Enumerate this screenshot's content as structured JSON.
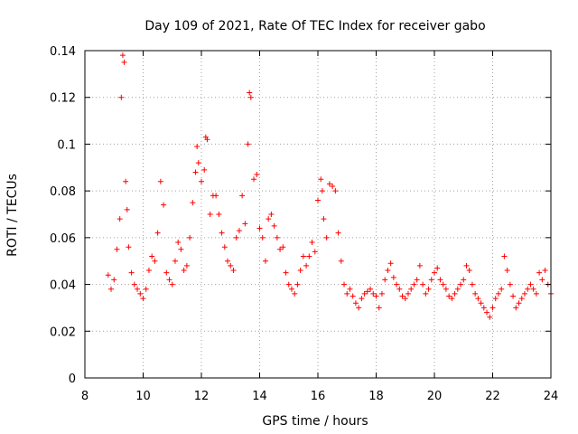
{
  "chart_data": {
    "type": "scatter",
    "title": "Day 109 of 2021, Rate Of TEC Index for receiver gabo",
    "xlabel": "GPS time / hours",
    "ylabel": "ROTI / TECUs",
    "xlim": [
      8,
      24
    ],
    "ylim": [
      0,
      0.14
    ],
    "xticks": [
      "8",
      "10",
      "12",
      "14",
      "16",
      "18",
      "20",
      "22",
      "24"
    ],
    "yticks": [
      "0",
      "0.02",
      "0.04",
      "0.06",
      "0.08",
      "0.1",
      "0.12",
      "0.14"
    ],
    "xtick_values": [
      8,
      10,
      12,
      14,
      16,
      18,
      20,
      22,
      24
    ],
    "ytick_values": [
      0,
      0.02,
      0.04,
      0.06,
      0.08,
      0.1,
      0.12,
      0.14
    ],
    "grid": true,
    "marker": "plus",
    "color": "#ff0000",
    "series": [
      {
        "name": "ROTI",
        "x": [
          8.8,
          8.9,
          9.0,
          9.1,
          9.2,
          9.25,
          9.3,
          9.35,
          9.4,
          9.45,
          9.5,
          9.6,
          9.7,
          9.8,
          9.9,
          10.0,
          10.1,
          10.2,
          10.3,
          10.4,
          10.5,
          10.6,
          10.7,
          10.8,
          10.9,
          11.0,
          11.1,
          11.2,
          11.3,
          11.4,
          11.5,
          11.6,
          11.7,
          11.8,
          11.85,
          11.9,
          12.0,
          12.1,
          12.15,
          12.2,
          12.3,
          12.4,
          12.5,
          12.6,
          12.7,
          12.8,
          12.9,
          13.0,
          13.1,
          13.2,
          13.3,
          13.4,
          13.5,
          13.6,
          13.65,
          13.7,
          13.8,
          13.9,
          14.0,
          14.1,
          14.2,
          14.3,
          14.4,
          14.5,
          14.6,
          14.7,
          14.8,
          14.9,
          15.0,
          15.1,
          15.2,
          15.3,
          15.4,
          15.5,
          15.6,
          15.7,
          15.8,
          15.9,
          16.0,
          16.1,
          16.15,
          16.2,
          16.3,
          16.4,
          16.5,
          16.6,
          16.7,
          16.8,
          16.9,
          17.0,
          17.1,
          17.2,
          17.3,
          17.4,
          17.5,
          17.6,
          17.7,
          17.8,
          17.9,
          18.0,
          18.1,
          18.2,
          18.3,
          18.4,
          18.5,
          18.6,
          18.7,
          18.8,
          18.9,
          19.0,
          19.1,
          19.2,
          19.3,
          19.4,
          19.5,
          19.6,
          19.7,
          19.8,
          19.9,
          20.0,
          20.1,
          20.2,
          20.3,
          20.4,
          20.5,
          20.6,
          20.7,
          20.8,
          20.9,
          21.0,
          21.1,
          21.2,
          21.3,
          21.4,
          21.5,
          21.6,
          21.7,
          21.8,
          21.9,
          22.0,
          22.1,
          22.2,
          22.3,
          22.4,
          22.5,
          22.6,
          22.7,
          22.8,
          22.9,
          23.0,
          23.1,
          23.2,
          23.3,
          23.4,
          23.5,
          23.6,
          23.7,
          23.8,
          23.9,
          24.0
        ],
        "y": [
          0.044,
          0.038,
          0.042,
          0.055,
          0.068,
          0.12,
          0.138,
          0.135,
          0.084,
          0.072,
          0.056,
          0.045,
          0.04,
          0.038,
          0.036,
          0.034,
          0.038,
          0.046,
          0.052,
          0.05,
          0.062,
          0.084,
          0.074,
          0.045,
          0.042,
          0.04,
          0.05,
          0.058,
          0.055,
          0.046,
          0.048,
          0.06,
          0.075,
          0.088,
          0.099,
          0.092,
          0.084,
          0.089,
          0.103,
          0.102,
          0.07,
          0.078,
          0.078,
          0.07,
          0.062,
          0.056,
          0.05,
          0.048,
          0.046,
          0.06,
          0.063,
          0.078,
          0.066,
          0.1,
          0.122,
          0.12,
          0.085,
          0.087,
          0.064,
          0.06,
          0.05,
          0.068,
          0.07,
          0.065,
          0.06,
          0.055,
          0.056,
          0.045,
          0.04,
          0.038,
          0.036,
          0.04,
          0.046,
          0.052,
          0.048,
          0.052,
          0.058,
          0.054,
          0.076,
          0.085,
          0.08,
          0.068,
          0.06,
          0.083,
          0.082,
          0.08,
          0.062,
          0.05,
          0.04,
          0.036,
          0.038,
          0.035,
          0.032,
          0.03,
          0.034,
          0.036,
          0.037,
          0.038,
          0.036,
          0.035,
          0.03,
          0.036,
          0.042,
          0.046,
          0.049,
          0.043,
          0.04,
          0.038,
          0.035,
          0.034,
          0.036,
          0.038,
          0.04,
          0.042,
          0.048,
          0.04,
          0.036,
          0.038,
          0.042,
          0.045,
          0.047,
          0.042,
          0.04,
          0.038,
          0.035,
          0.034,
          0.036,
          0.038,
          0.04,
          0.042,
          0.048,
          0.046,
          0.04,
          0.036,
          0.034,
          0.032,
          0.03,
          0.028,
          0.026,
          0.03,
          0.034,
          0.036,
          0.038,
          0.052,
          0.046,
          0.04,
          0.035,
          0.03,
          0.032,
          0.034,
          0.036,
          0.038,
          0.04,
          0.038,
          0.036,
          0.045,
          0.042,
          0.046,
          0.04,
          0.036
        ]
      }
    ]
  }
}
